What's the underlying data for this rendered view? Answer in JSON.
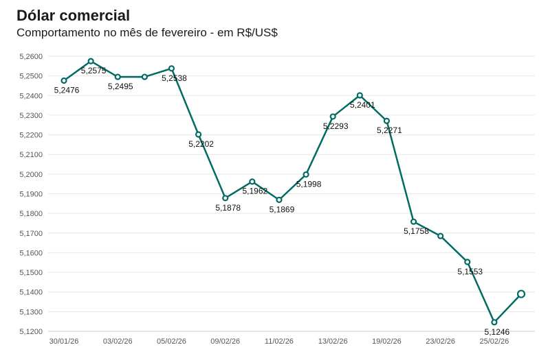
{
  "title": "Dólar comercial",
  "subtitle": "Comportamento no mês de fevereiro - em R$/US$",
  "chart_data": {
    "type": "line",
    "title": "Dólar comercial",
    "subtitle": "Comportamento no mês de fevereiro - em R$/US$",
    "xlabel": "",
    "ylabel": "",
    "ylim": [
      5.12,
      5.26
    ],
    "yticks": [
      "5,1200",
      "5,1300",
      "5,1400",
      "5,1500",
      "5,1600",
      "5,1700",
      "5,1800",
      "5,1900",
      "5,2000",
      "5,2100",
      "5,2200",
      "5,2300",
      "5,2400",
      "5,2500",
      "5,2600"
    ],
    "xticks": [
      "30/01/26",
      "03/02/26",
      "05/02/26",
      "09/02/26",
      "11/02/26",
      "13/02/26",
      "19/02/26",
      "23/02/26",
      "25/02/26"
    ],
    "grid": true,
    "series": [
      {
        "color": "#006b63",
        "values": [
          5.2476,
          5.2575,
          5.2495,
          5.2495,
          5.2538,
          5.2202,
          5.1878,
          5.1962,
          5.1869,
          5.1998,
          5.2293,
          5.2401,
          5.2271,
          5.1758,
          5.1685,
          5.1553,
          5.1246,
          5.139
        ],
        "labels": [
          "5,2476",
          "5,2575",
          "5,2495",
          "",
          "5,2538",
          "5,2202",
          "5,1878",
          "5,1962",
          "5,1869",
          "5,1998",
          "5,2293",
          "5,2401",
          "5,2271",
          "5,1758",
          "",
          "5,1553",
          "5,1246",
          ""
        ]
      }
    ]
  }
}
